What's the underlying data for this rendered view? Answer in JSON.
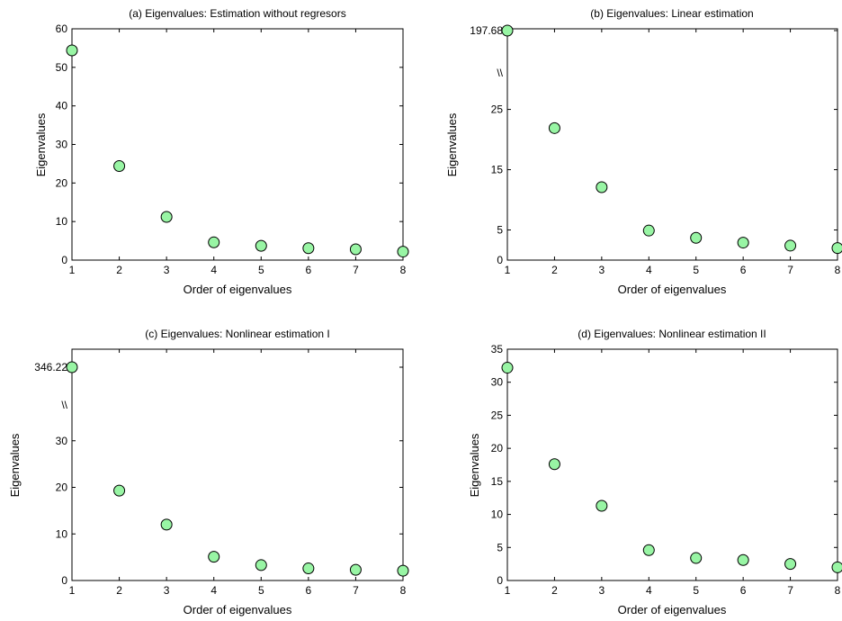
{
  "figure": {
    "marker_fill": "#98f5a4",
    "marker_stroke": "#000000",
    "axis_color": "#000000",
    "background": "#ffffff"
  },
  "chart_data": [
    {
      "type": "scatter",
      "title": "(a) Eigenvalues: Estimation without regresors",
      "xlabel": "Order of eigenvalues",
      "ylabel": "Eigenvalues",
      "xlim": [
        1,
        8
      ],
      "ylim": [
        0,
        60
      ],
      "x_ticks": [
        "1",
        "2",
        "3",
        "4",
        "5",
        "6",
        "7",
        "8"
      ],
      "y_ticks": [
        {
          "value": 0,
          "label": "0"
        },
        {
          "value": 10,
          "label": "10"
        },
        {
          "value": 20,
          "label": "20"
        },
        {
          "value": 30,
          "label": "30"
        },
        {
          "value": 40,
          "label": "40"
        },
        {
          "value": 50,
          "label": "50"
        },
        {
          "value": 60,
          "label": "60"
        }
      ],
      "x": [
        1,
        2,
        3,
        4,
        5,
        6,
        7,
        8
      ],
      "y": [
        54.4,
        24.4,
        11.2,
        4.6,
        3.7,
        3.1,
        2.8,
        2.2
      ]
    },
    {
      "type": "scatter",
      "title": "(b) Eigenvalues: Linear estimation",
      "xlabel": "Order of eigenvalues",
      "ylabel": "Eigenvalues",
      "xlim": [
        1,
        8
      ],
      "ylim": [
        0,
        197.68
      ],
      "axis_break": {
        "symbol": "\\\\",
        "from": 33,
        "to": 197.68
      },
      "x_ticks": [
        "1",
        "2",
        "3",
        "4",
        "5",
        "6",
        "7",
        "8"
      ],
      "y_ticks": [
        {
          "value": 0,
          "label": "0"
        },
        {
          "value": 5,
          "label": "5"
        },
        {
          "value": 15,
          "label": "15"
        },
        {
          "value": 25,
          "label": "25"
        },
        {
          "value": 197.68,
          "label": "197.68"
        }
      ],
      "x": [
        1,
        2,
        3,
        4,
        5,
        6,
        7,
        8
      ],
      "y": [
        197.68,
        21.9,
        12.1,
        4.9,
        3.7,
        2.9,
        2.4,
        2.0
      ]
    },
    {
      "type": "scatter",
      "title": "(c) Eigenvalues: Nonlinear estimation I",
      "xlabel": "Order of eigenvalues",
      "ylabel": "Eigenvalues",
      "xlim": [
        1,
        8
      ],
      "ylim": [
        0,
        346.22
      ],
      "axis_break": {
        "symbol": "\\\\",
        "from": 40,
        "to": 346.22
      },
      "x_ticks": [
        "1",
        "2",
        "3",
        "4",
        "5",
        "6",
        "7",
        "8"
      ],
      "y_ticks": [
        {
          "value": 0,
          "label": "0"
        },
        {
          "value": 10,
          "label": "10"
        },
        {
          "value": 20,
          "label": "20"
        },
        {
          "value": 30,
          "label": "30"
        },
        {
          "value": 346.22,
          "label": "346.22"
        }
      ],
      "x": [
        1,
        2,
        3,
        4,
        5,
        6,
        7,
        8
      ],
      "y": [
        346.22,
        19.3,
        12.0,
        5.1,
        3.3,
        2.6,
        2.3,
        2.1
      ]
    },
    {
      "type": "scatter",
      "title": "(d) Eigenvalues: Nonlinear estimation II",
      "xlabel": "Order of eigenvalues",
      "ylabel": "Eigenvalues",
      "xlim": [
        1,
        8
      ],
      "ylim": [
        0,
        35
      ],
      "x_ticks": [
        "1",
        "2",
        "3",
        "4",
        "5",
        "6",
        "7",
        "8"
      ],
      "y_ticks": [
        {
          "value": 0,
          "label": "0"
        },
        {
          "value": 5,
          "label": "5"
        },
        {
          "value": 10,
          "label": "10"
        },
        {
          "value": 15,
          "label": "15"
        },
        {
          "value": 20,
          "label": "20"
        },
        {
          "value": 25,
          "label": "25"
        },
        {
          "value": 30,
          "label": "30"
        },
        {
          "value": 35,
          "label": "35"
        }
      ],
      "x": [
        1,
        2,
        3,
        4,
        5,
        6,
        7,
        8
      ],
      "y": [
        32.2,
        17.6,
        11.3,
        4.6,
        3.4,
        3.1,
        2.5,
        2.0
      ]
    }
  ]
}
